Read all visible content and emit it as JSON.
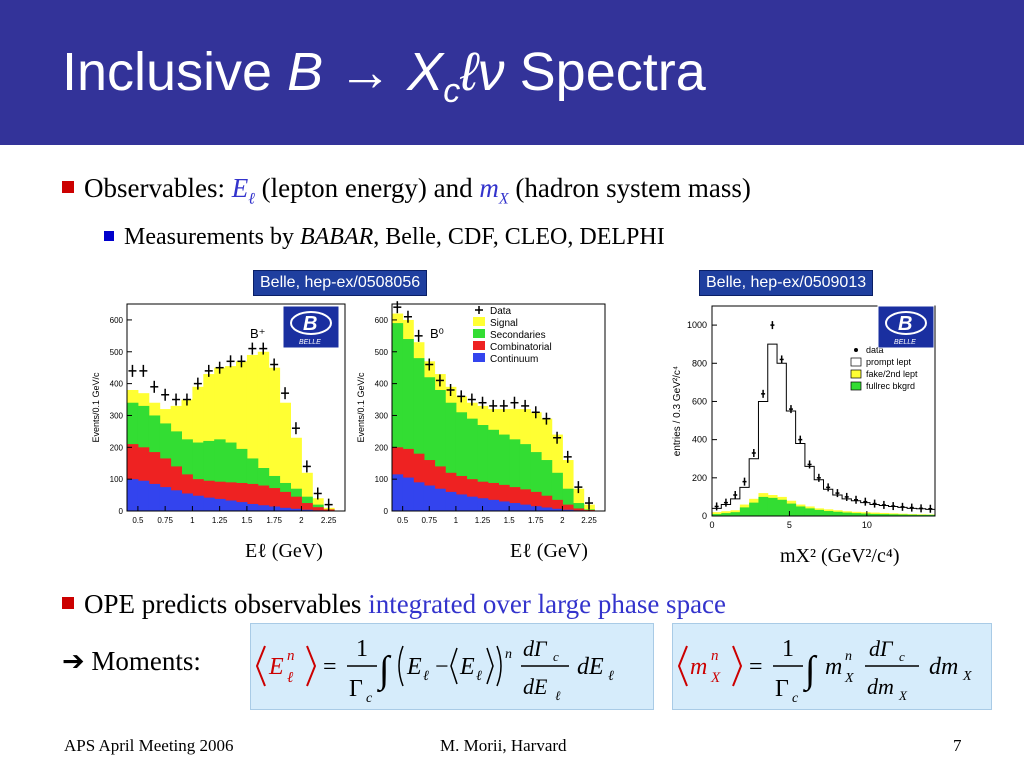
{
  "slide": {
    "title": "Inclusive B → Xcℓν Spectra",
    "title_parts": {
      "prefix": "Inclusive ",
      "b": "B",
      "arrow": " → ",
      "x": "X",
      "c": "c",
      "lnu": "ℓν",
      "suffix": " Spectra"
    }
  },
  "bullets": {
    "observables": {
      "text1": "Observables: ",
      "el": "E",
      "el_sub": "ℓ",
      "text2": " (lepton energy) and ",
      "mx": "m",
      "mx_sub": "X",
      "text3": " (hadron system mass)"
    },
    "measurements": {
      "text1": "Measurements by ",
      "babar": "BABAR",
      "text2": ", Belle, CDF, CLEO, DELPHI"
    },
    "ope": {
      "text1": "OPE predicts observables ",
      "highlight": "integrated over large phase space"
    },
    "moments": {
      "arrow": "➔",
      "label": "Moments:"
    }
  },
  "figures": {
    "ref1": "Belle, hep-ex/0508056",
    "ref2": "Belle, hep-ex/0509013",
    "logo_text": "BELLE",
    "plot1": {
      "ylabel": "Events/0.1 GeV/c",
      "tag": "B⁺",
      "yticks": [
        "0",
        "100",
        "200",
        "300",
        "400",
        "500",
        "600"
      ],
      "xticks": [
        "0.5",
        "0.75",
        "1",
        "1.25",
        "1.5",
        "1.75",
        "2",
        "2.25"
      ],
      "xlabel": "Eℓ (GeV)",
      "x": [
        0.45,
        0.55,
        0.65,
        0.75,
        0.85,
        0.95,
        1.05,
        1.15,
        1.25,
        1.35,
        1.45,
        1.55,
        1.65,
        1.75,
        1.85,
        1.95,
        2.05,
        2.15,
        2.25
      ],
      "continuum": [
        100,
        95,
        85,
        75,
        65,
        55,
        48,
        42,
        38,
        33,
        28,
        22,
        18,
        14,
        10,
        7,
        4,
        2,
        1
      ],
      "combinatorial": [
        210,
        200,
        185,
        165,
        140,
        115,
        100,
        95,
        92,
        90,
        88,
        85,
        80,
        72,
        60,
        45,
        25,
        12,
        5
      ],
      "secondaries": [
        340,
        330,
        300,
        275,
        250,
        225,
        215,
        220,
        225,
        215,
        195,
        165,
        135,
        110,
        88,
        70,
        45,
        20,
        5
      ],
      "signal": [
        380,
        370,
        340,
        320,
        330,
        350,
        390,
        430,
        450,
        455,
        470,
        490,
        500,
        450,
        340,
        230,
        120,
        40,
        10
      ],
      "data": [
        440,
        440,
        390,
        365,
        350,
        350,
        400,
        440,
        450,
        470,
        470,
        510,
        510,
        460,
        370,
        260,
        140,
        55,
        20
      ]
    },
    "plot2": {
      "ylabel": "Events/0.1 GeV/c",
      "tag": "B⁰",
      "yticks": [
        "0",
        "100",
        "200",
        "300",
        "400",
        "500",
        "600"
      ],
      "xticks": [
        "0.5",
        "0.75",
        "1",
        "1.25",
        "1.5",
        "1.75",
        "2",
        "2.25"
      ],
      "xlabel": "Eℓ (GeV)",
      "legend": [
        "Data",
        "Signal",
        "Secondaries",
        "Combinatorial",
        "Continuum"
      ],
      "x": [
        0.45,
        0.55,
        0.65,
        0.75,
        0.85,
        0.95,
        1.05,
        1.15,
        1.25,
        1.35,
        1.45,
        1.55,
        1.65,
        1.75,
        1.85,
        1.95,
        2.05,
        2.15,
        2.25
      ],
      "continuum": [
        115,
        105,
        90,
        80,
        70,
        60,
        52,
        45,
        40,
        35,
        30,
        25,
        20,
        15,
        11,
        7,
        4,
        2,
        1
      ],
      "combinatorial": [
        200,
        195,
        180,
        160,
        140,
        120,
        110,
        100,
        92,
        88,
        82,
        75,
        68,
        60,
        48,
        35,
        20,
        8,
        3
      ],
      "secondaries": [
        590,
        540,
        480,
        420,
        380,
        340,
        310,
        290,
        270,
        255,
        240,
        225,
        210,
        185,
        160,
        120,
        70,
        25,
        5
      ],
      "signal": [
        620,
        600,
        530,
        470,
        430,
        390,
        360,
        340,
        330,
        320,
        320,
        320,
        320,
        310,
        290,
        240,
        160,
        70,
        20
      ],
      "data": [
        640,
        610,
        550,
        460,
        410,
        380,
        360,
        350,
        340,
        330,
        330,
        340,
        330,
        310,
        290,
        230,
        170,
        75,
        25
      ]
    },
    "plot3": {
      "ylabel": "entries / 0.3 GeV²/c⁴",
      "yticks": [
        "0",
        "200",
        "400",
        "600",
        "800",
        "1000"
      ],
      "xticks": [
        "0",
        "5",
        "10"
      ],
      "xlabel": "mX² (GeV²/c⁴)",
      "legend": [
        "data",
        "prompt lept",
        "fake/2nd lept",
        "fullrec bkgrd"
      ],
      "x": [
        0.3,
        0.9,
        1.5,
        2.1,
        2.7,
        3.3,
        3.9,
        4.5,
        5.1,
        5.7,
        6.3,
        6.9,
        7.5,
        8.1,
        8.7,
        9.3,
        9.9,
        10.5,
        11.1,
        11.7,
        12.3,
        12.9,
        13.5,
        14.1
      ],
      "prompt": [
        40,
        60,
        90,
        150,
        300,
        600,
        900,
        800,
        550,
        380,
        260,
        190,
        140,
        110,
        90,
        80,
        70,
        60,
        55,
        50,
        45,
        40,
        38,
        35
      ],
      "fake": [
        20,
        25,
        30,
        60,
        90,
        120,
        110,
        100,
        80,
        60,
        50,
        40,
        35,
        30,
        25,
        22,
        20,
        18,
        16,
        14,
        12,
        10,
        9,
        8
      ],
      "fullrec": [
        10,
        15,
        20,
        45,
        70,
        100,
        95,
        85,
        65,
        50,
        40,
        32,
        26,
        22,
        18,
        15,
        13,
        11,
        10,
        9,
        8,
        7,
        6,
        6
      ],
      "data": [
        50,
        70,
        110,
        180,
        330,
        640,
        1000,
        820,
        560,
        400,
        270,
        200,
        150,
        120,
        100,
        85,
        75,
        65,
        58,
        52,
        48,
        44,
        40,
        38
      ]
    }
  },
  "equations": {
    "eq1_parts": {
      "lhs": "E",
      "lhs_sup": "n",
      "lhs_sub": "ℓ",
      "eq": "=",
      "num": "1",
      "den": "Γ",
      "den_sub": "c",
      "int": "∫",
      "term": "E",
      "term_sub": "ℓ",
      "minus": "−",
      "avg": "E",
      "avg_sub": "ℓ",
      "pow": "n",
      "dgamma": "dΓ",
      "dgamma_sub": "c",
      "dE": "dE",
      "dE_sub": "ℓ",
      "tail": "dE",
      "tail_sub": "ℓ"
    },
    "eq2_parts": {
      "lhs": "m",
      "lhs_sup": "n",
      "lhs_sub": "X",
      "eq": "=",
      "num": "1",
      "den": "Γ",
      "den_sub": "c",
      "int": "∫",
      "m": "m",
      "m_sup": "n",
      "m_sub": "X",
      "dgamma": "dΓ",
      "dgamma_sub": "c",
      "dm": "dm",
      "dm_sub": "X",
      "tail": "dm",
      "tail_sub": "X"
    }
  },
  "footer": {
    "left": "APS April Meeting 2006",
    "center": "M. Morii, Harvard",
    "page": "7"
  },
  "colors": {
    "title_bg": "#333399",
    "signal": "#ffff33",
    "secondaries": "#33dd33",
    "combinatorial": "#ee2222",
    "continuum": "#3344ee",
    "accent_red": "#cc0000",
    "accent_blue": "#3333cc"
  }
}
